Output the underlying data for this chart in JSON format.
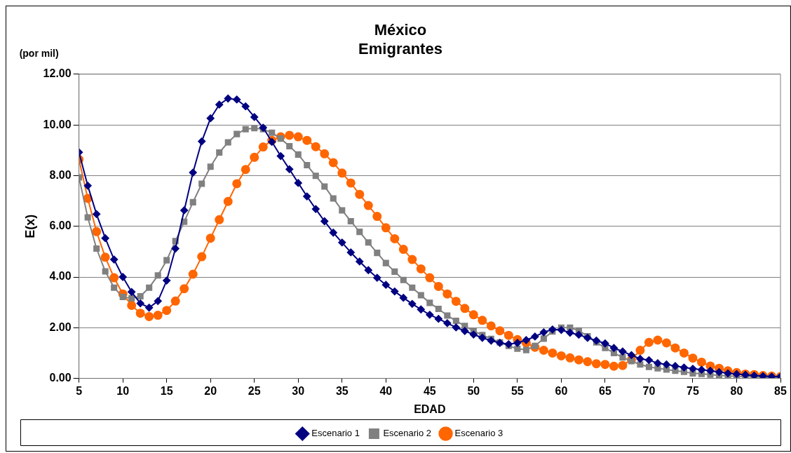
{
  "chart_data": {
    "type": "line",
    "title": "México",
    "subtitle": "Emigrantes",
    "xlabel": "EDAD",
    "ylabel": "E(x)",
    "annotations": [
      "(por mil)"
    ],
    "x": [
      5,
      6,
      7,
      8,
      9,
      10,
      11,
      12,
      13,
      14,
      15,
      16,
      17,
      18,
      19,
      20,
      21,
      22,
      23,
      24,
      25,
      26,
      27,
      28,
      29,
      30,
      31,
      32,
      33,
      34,
      35,
      36,
      37,
      38,
      39,
      40,
      41,
      42,
      43,
      44,
      45,
      46,
      47,
      48,
      49,
      50,
      51,
      52,
      53,
      54,
      55,
      56,
      57,
      58,
      59,
      60,
      61,
      62,
      63,
      64,
      65,
      66,
      67,
      68,
      69,
      70,
      71,
      72,
      73,
      74,
      75,
      76,
      77,
      78,
      79,
      80,
      81,
      82,
      83,
      84,
      85
    ],
    "series": [
      {
        "name": "Escenario 1",
        "color": "#000080",
        "marker": "diamond",
        "values": [
          8.92,
          7.6,
          6.48,
          5.53,
          4.69,
          4.0,
          3.41,
          2.96,
          2.79,
          3.05,
          3.86,
          5.12,
          6.63,
          8.12,
          9.35,
          10.26,
          10.8,
          11.04,
          11.0,
          10.73,
          10.31,
          9.89,
          9.33,
          8.77,
          8.25,
          7.71,
          7.18,
          6.68,
          6.2,
          5.75,
          5.36,
          4.97,
          4.61,
          4.27,
          3.97,
          3.69,
          3.43,
          3.18,
          2.94,
          2.72,
          2.51,
          2.35,
          2.18,
          2.01,
          1.87,
          1.73,
          1.6,
          1.49,
          1.4,
          1.35,
          1.4,
          1.51,
          1.65,
          1.82,
          1.93,
          1.91,
          1.8,
          1.72,
          1.6,
          1.49,
          1.38,
          1.2,
          1.06,
          0.92,
          0.77,
          0.72,
          0.6,
          0.55,
          0.49,
          0.43,
          0.38,
          0.34,
          0.3,
          0.25,
          0.2,
          0.17,
          0.14,
          0.11,
          0.09,
          0.07,
          0.07
        ]
      },
      {
        "name": "Escenario 2",
        "color": "#808080",
        "marker": "square",
        "values": [
          7.93,
          6.35,
          5.12,
          4.22,
          3.58,
          3.21,
          3.16,
          3.24,
          3.58,
          4.06,
          4.66,
          5.42,
          6.18,
          6.95,
          7.68,
          8.35,
          8.91,
          9.31,
          9.64,
          9.83,
          9.87,
          9.83,
          9.69,
          9.46,
          9.16,
          8.83,
          8.41,
          7.99,
          7.57,
          7.1,
          6.63,
          6.2,
          5.78,
          5.36,
          4.95,
          4.55,
          4.21,
          3.88,
          3.58,
          3.28,
          2.98,
          2.74,
          2.48,
          2.27,
          2.07,
          1.87,
          1.71,
          1.56,
          1.42,
          1.28,
          1.17,
          1.12,
          1.28,
          1.57,
          1.85,
          2.0,
          2.0,
          1.89,
          1.66,
          1.42,
          1.2,
          1.0,
          0.83,
          0.68,
          0.55,
          0.45,
          0.4,
          0.35,
          0.3,
          0.26,
          0.2,
          0.18,
          0.15,
          0.12,
          0.1,
          0.08,
          0.07,
          0.06,
          0.05,
          0.04,
          0.04
        ]
      },
      {
        "name": "Escenario 3",
        "color": "#ff6600",
        "marker": "circle",
        "values": [
          8.64,
          7.1,
          5.79,
          4.78,
          3.97,
          3.33,
          2.88,
          2.57,
          2.44,
          2.49,
          2.68,
          3.05,
          3.54,
          4.11,
          4.8,
          5.53,
          6.26,
          6.98,
          7.68,
          8.24,
          8.72,
          9.13,
          9.39,
          9.53,
          9.59,
          9.53,
          9.39,
          9.14,
          8.86,
          8.51,
          8.1,
          7.71,
          7.26,
          6.82,
          6.39,
          5.94,
          5.51,
          5.09,
          4.69,
          4.32,
          3.97,
          3.63,
          3.33,
          3.04,
          2.76,
          2.51,
          2.29,
          2.07,
          1.88,
          1.7,
          1.53,
          1.4,
          1.23,
          1.11,
          1.0,
          0.89,
          0.81,
          0.73,
          0.66,
          0.58,
          0.55,
          0.48,
          0.51,
          0.74,
          1.11,
          1.42,
          1.51,
          1.4,
          1.2,
          1.0,
          0.8,
          0.64,
          0.49,
          0.4,
          0.3,
          0.23,
          0.17,
          0.15,
          0.11,
          0.09,
          0.07
        ]
      }
    ],
    "xlim": [
      5,
      85
    ],
    "xticks": [
      5,
      10,
      15,
      20,
      25,
      30,
      35,
      40,
      45,
      50,
      55,
      60,
      65,
      70,
      75,
      80,
      85
    ],
    "ylim": [
      0,
      12
    ],
    "yticks": [
      {
        "value": 0,
        "label": "0.00"
      },
      {
        "value": 2,
        "label": "2.00"
      },
      {
        "value": 4,
        "label": "4.00"
      },
      {
        "value": 6,
        "label": "6.00"
      },
      {
        "value": 8,
        "label": "8.00"
      },
      {
        "value": 10,
        "label": "10.00"
      },
      {
        "value": 12,
        "label": "12.00"
      }
    ],
    "grid": "y",
    "legend": "bottom",
    "line_style": "solid"
  }
}
